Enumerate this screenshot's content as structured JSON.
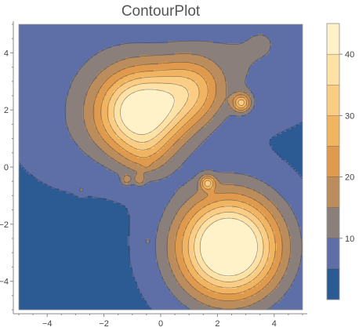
{
  "chart_data": {
    "type": "contour",
    "title": "ContourPlot",
    "xlim": [
      -5,
      5
    ],
    "ylim": [
      -5,
      5
    ],
    "x_ticks": [
      -4,
      -2,
      0,
      2,
      4
    ],
    "y_ticks": [
      -4,
      -2,
      0,
      2,
      4
    ],
    "x_tick_labels": [
      "−4",
      "−2",
      "0",
      "2",
      "4"
    ],
    "y_tick_labels": [
      "−4",
      "−2",
      "0",
      "2",
      "4"
    ],
    "legend": {
      "placement": "right",
      "min": 0,
      "max": 45,
      "ticks": [
        10,
        20,
        30,
        40
      ],
      "tick_labels": [
        "10",
        "20",
        "30",
        "40"
      ],
      "bands": [
        {
          "low": 0,
          "high": 5,
          "color": "#2c5a92"
        },
        {
          "low": 5,
          "high": 10,
          "color": "#5d6fa6"
        },
        {
          "low": 10,
          "high": 15,
          "color": "#8a7f7b"
        },
        {
          "low": 15,
          "high": 20,
          "color": "#bb8c5c"
        },
        {
          "low": 20,
          "high": 25,
          "color": "#e09a4d"
        },
        {
          "low": 25,
          "high": 30,
          "color": "#f1b562"
        },
        {
          "low": 30,
          "high": 35,
          "color": "#fbcd84"
        },
        {
          "low": 35,
          "high": 40,
          "color": "#fde1a5"
        },
        {
          "low": 40,
          "high": 45,
          "color": "#fff2c8"
        }
      ]
    },
    "field": {
      "offset": 4.0,
      "peaks": [
        {
          "x": 2.4,
          "y": -2.8,
          "amplitude": 50,
          "width": 1.25
        },
        {
          "x": -0.7,
          "y": 1.9,
          "amplitude": 41,
          "width": 1.05
        },
        {
          "x": 1.1,
          "y": 2.7,
          "amplitude": 20,
          "width": 0.85
        },
        {
          "x": -2.3,
          "y": 3.5,
          "amplitude": 4,
          "width": 2.2
        },
        {
          "x": 3.6,
          "y": 4.3,
          "amplitude": 6,
          "width": 1.6
        },
        {
          "x": 2.85,
          "y": 2.25,
          "amplitude": 24,
          "width": 0.22
        },
        {
          "x": 1.65,
          "y": -0.55,
          "amplitude": 21,
          "width": 0.18
        },
        {
          "x": -0.55,
          "y": 0.35,
          "amplitude": 6,
          "width": 0.55
        },
        {
          "x": -3.1,
          "y": 1.2,
          "amplitude": 2,
          "width": 1.2
        },
        {
          "x": -1.2,
          "y": -0.45,
          "amplitude": 9,
          "width": 0.13
        },
        {
          "x": -0.75,
          "y": -0.45,
          "amplitude": 9,
          "width": 0.13
        },
        {
          "x": -2.8,
          "y": -0.8,
          "amplitude": 6,
          "width": 0.1
        },
        {
          "x": -0.5,
          "y": 0.1,
          "amplitude": 4,
          "width": 0.1
        },
        {
          "x": -0.5,
          "y": -2.6,
          "amplitude": 3,
          "width": 0.12
        }
      ]
    }
  }
}
